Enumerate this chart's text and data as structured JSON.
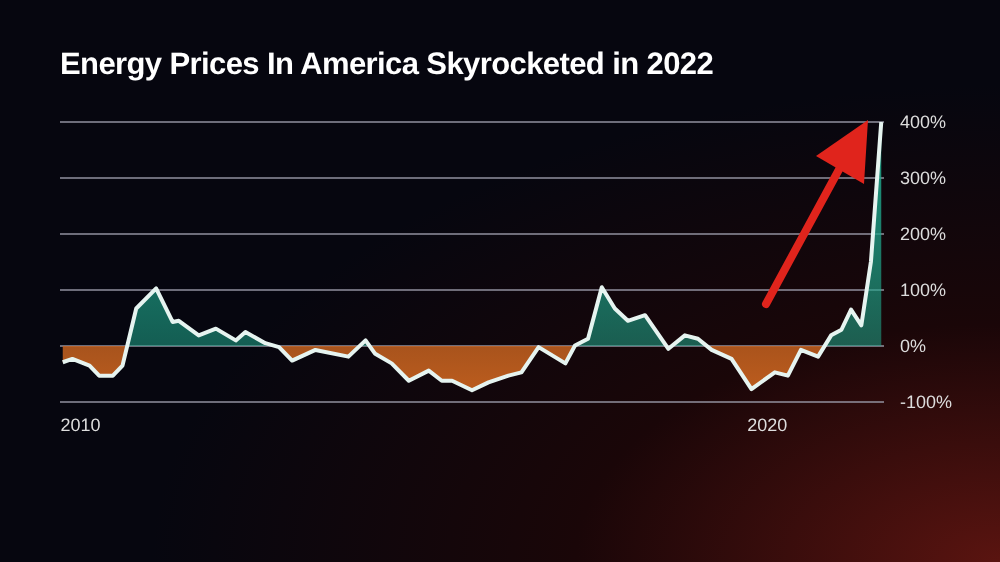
{
  "chart_data": {
    "type": "area",
    "title": "Energy Prices In America Skyrocketed in 2022",
    "x": [
      2009.74,
      2009.88,
      2010.13,
      2010.27,
      2010.47,
      2010.61,
      2010.81,
      2011.1,
      2011.34,
      2011.43,
      2011.72,
      2011.97,
      2012.26,
      2012.4,
      2012.69,
      2012.89,
      2013.08,
      2013.42,
      2013.9,
      2014.15,
      2014.29,
      2014.53,
      2014.78,
      2015.07,
      2015.26,
      2015.41,
      2015.7,
      2015.94,
      2016.23,
      2016.42,
      2016.67,
      2017.06,
      2017.2,
      2017.39,
      2017.59,
      2017.78,
      2017.97,
      2018.22,
      2018.56,
      2018.8,
      2018.99,
      2019.19,
      2019.48,
      2019.77,
      2020.11,
      2020.3,
      2020.49,
      2020.74,
      2020.93,
      2021.08,
      2021.22,
      2021.37,
      2021.51,
      2021.66
    ],
    "series": [
      {
        "color": "#1fa58a",
        "values": [
          -29,
          -23,
          -35,
          -53,
          -53,
          -35,
          67,
          103,
          43,
          45,
          19,
          31,
          10,
          25,
          5,
          -2,
          -26,
          -7,
          -19,
          10,
          -14,
          -31,
          -62,
          -44,
          -62,
          -62,
          -79,
          -65,
          -53,
          -47,
          -2,
          -31,
          1,
          13,
          105,
          67,
          45,
          55,
          -5,
          19,
          13,
          -7,
          -23,
          -77,
          -47,
          -53,
          -7,
          -19,
          19,
          29,
          65,
          37,
          151,
          400
        ]
      }
    ],
    "xlim": [
      2009.7,
      2021.7
    ],
    "xticks": [
      2010,
      2020
    ],
    "ylim": [
      -100,
      400
    ],
    "yticks": [
      {
        "value": -100,
        "label": "-100%"
      },
      {
        "value": 0,
        "label": "0%"
      },
      {
        "value": 100,
        "label": "100%"
      },
      {
        "value": 200,
        "label": "200%"
      },
      {
        "value": 300,
        "label": "300%"
      },
      {
        "value": 400,
        "label": "400%"
      }
    ],
    "grid": "y"
  }
}
